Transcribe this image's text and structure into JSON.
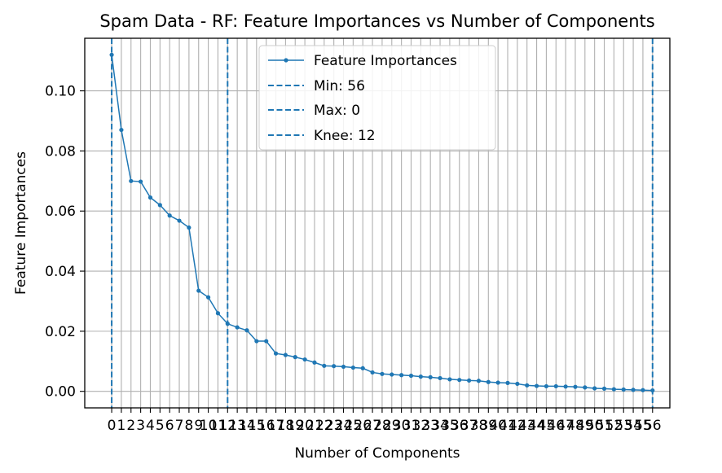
{
  "chart_data": {
    "type": "line",
    "title": "Spam Data - RF: Feature Importances vs Number of Components",
    "xlabel": "Number of Components",
    "ylabel": "Feature Importances",
    "xlim": [
      -2.79,
      57.79
    ],
    "ylim": [
      -0.0055,
      0.1175
    ],
    "x": [
      0,
      1,
      2,
      3,
      4,
      5,
      6,
      7,
      8,
      9,
      10,
      11,
      12,
      13,
      14,
      15,
      16,
      17,
      18,
      19,
      20,
      21,
      22,
      23,
      24,
      25,
      26,
      27,
      28,
      29,
      30,
      31,
      32,
      33,
      34,
      35,
      36,
      37,
      38,
      39,
      40,
      41,
      42,
      43,
      44,
      45,
      46,
      47,
      48,
      49,
      50,
      51,
      52,
      53,
      54,
      55,
      56
    ],
    "x_tick_labels": [
      "0",
      "1",
      "2",
      "3",
      "4",
      "5",
      "6",
      "7",
      "8",
      "9",
      "10",
      "11",
      "12",
      "13",
      "14",
      "15",
      "16",
      "17",
      "18",
      "19",
      "20",
      "21",
      "22",
      "23",
      "24",
      "25",
      "26",
      "27",
      "28",
      "29",
      "30",
      "31",
      "32",
      "33",
      "34",
      "35",
      "36",
      "37",
      "38",
      "39",
      "40",
      "41",
      "42",
      "43",
      "44",
      "45",
      "46",
      "47",
      "48",
      "49",
      "50",
      "51",
      "52",
      "53",
      "54",
      "55",
      "56"
    ],
    "y_ticks": [
      0.0,
      0.02,
      0.04,
      0.06,
      0.08,
      0.1
    ],
    "y_tick_labels": [
      "0.00",
      "0.02",
      "0.04",
      "0.06",
      "0.08",
      "0.10"
    ],
    "grid": true,
    "legend_position": "top-center",
    "series": [
      {
        "name": "Feature Importances",
        "color": "#1f77b4",
        "style": "solid",
        "marker": "dot",
        "values": [
          0.112,
          0.087,
          0.07,
          0.0698,
          0.0645,
          0.062,
          0.0585,
          0.0568,
          0.0545,
          0.0335,
          0.0313,
          0.026,
          0.0225,
          0.0213,
          0.0203,
          0.0167,
          0.0167,
          0.0126,
          0.0121,
          0.0114,
          0.0106,
          0.0096,
          0.0085,
          0.0084,
          0.0082,
          0.0079,
          0.0077,
          0.0063,
          0.0058,
          0.0056,
          0.0054,
          0.0052,
          0.0049,
          0.0047,
          0.0044,
          0.004,
          0.0038,
          0.0036,
          0.0035,
          0.0031,
          0.0029,
          0.0028,
          0.0025,
          0.002,
          0.0018,
          0.0017,
          0.0017,
          0.0016,
          0.0015,
          0.0013,
          0.001,
          0.0009,
          0.0007,
          0.0006,
          0.0005,
          0.0004,
          0.0003
        ]
      }
    ],
    "vlines": [
      {
        "name": "Min: 56",
        "x": 56,
        "color": "#1f77b4",
        "style": "dashed"
      },
      {
        "name": "Max: 0",
        "x": 0,
        "color": "#1f77b4",
        "style": "dashed"
      },
      {
        "name": "Knee: 12",
        "x": 12,
        "color": "#1f77b4",
        "style": "dashed"
      }
    ]
  }
}
